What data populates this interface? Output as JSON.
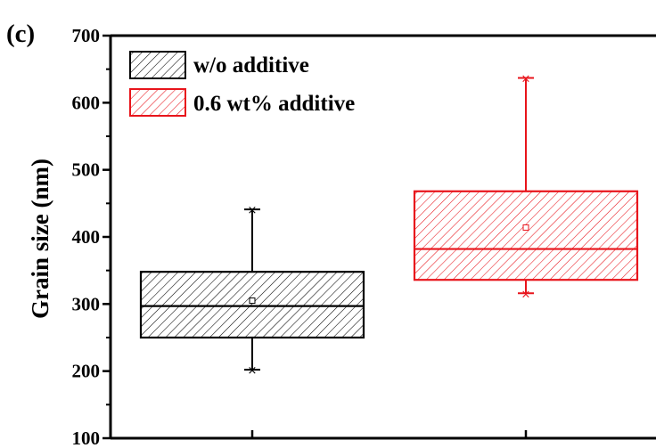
{
  "chart_data": {
    "type": "box",
    "panel_label": "(c)",
    "ylabel": "Grain size (nm)",
    "xlabel": "",
    "ylim": [
      100,
      700
    ],
    "yticks": [
      "100",
      "200",
      "300",
      "400",
      "500",
      "600",
      "700"
    ],
    "grid": false,
    "legend_position": "top-left",
    "series": [
      {
        "name": "w/o additive",
        "color": "#000000",
        "hatch": "diagonal",
        "whisker_low": 202,
        "q1": 250,
        "median": 297,
        "q3": 348,
        "whisker_high": 441,
        "mean": 305
      },
      {
        "name": "0.6 wt% additive",
        "color": "#e8141b",
        "hatch": "diagonal",
        "whisker_low": 316,
        "q1": 336,
        "median": 382,
        "q3": 468,
        "whisker_high": 637,
        "mean": 414
      }
    ]
  }
}
